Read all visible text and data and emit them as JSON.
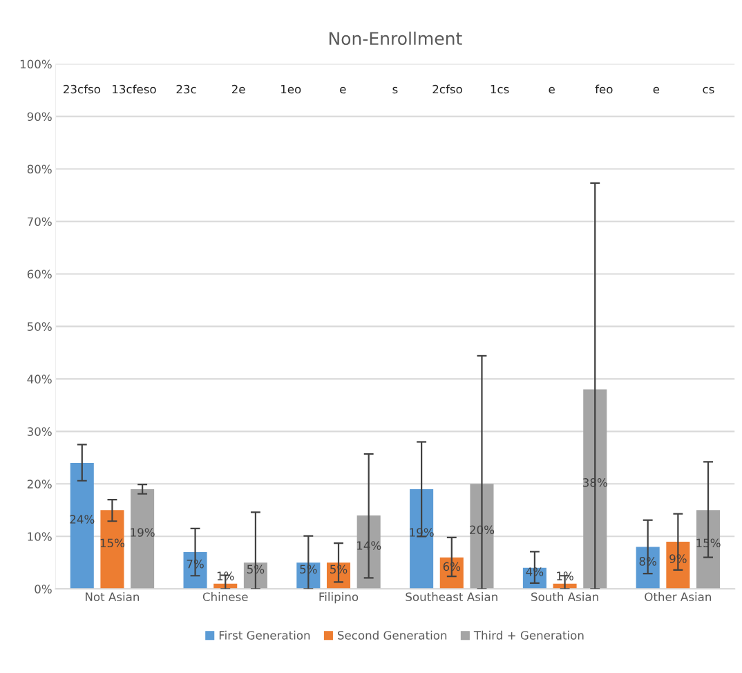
{
  "chart_data": {
    "type": "bar",
    "title": "Non-Enrollment",
    "categories": [
      "Not Asian",
      "Chinese",
      "Filipino",
      "Southeast Asian",
      "South Asian",
      "Other Asian"
    ],
    "series": [
      {
        "name": "First Generation",
        "color": "#5b9bd5",
        "values": [
          24,
          7,
          5,
          19,
          4,
          8
        ],
        "errors": [
          [
            20.6,
            27.5
          ],
          [
            2.5,
            11.5
          ],
          [
            0,
            10.1
          ],
          [
            10,
            28
          ],
          [
            1.1,
            7.1
          ],
          [
            2.9,
            13.1
          ]
        ],
        "value_labels": [
          "24%",
          "7%",
          "5%",
          "19%",
          "4%",
          "8%"
        ]
      },
      {
        "name": "Second Generation",
        "color": "#ed7d31",
        "values": [
          15,
          1,
          5,
          6,
          1,
          9
        ],
        "errors": [
          [
            12.9,
            17
          ],
          [
            0,
            2.6
          ],
          [
            1.3,
            8.7
          ],
          [
            2.4,
            9.8
          ],
          [
            0,
            2.5
          ],
          [
            3.6,
            14.3
          ]
        ],
        "value_labels": [
          "15%",
          "1%",
          "5%",
          "6%",
          "1%",
          "9%"
        ]
      },
      {
        "name": "Third + Generation",
        "color": "#a5a5a5",
        "values": [
          19,
          5,
          14,
          20,
          38,
          15
        ],
        "errors": [
          [
            18.1,
            19.9
          ],
          [
            0,
            14.6
          ],
          [
            2.1,
            25.7
          ],
          [
            0,
            44.4
          ],
          [
            0,
            77.3
          ],
          [
            6,
            24.2
          ]
        ],
        "value_labels": [
          "19%",
          "5%",
          "14%",
          "20%",
          "38%",
          "15%"
        ]
      }
    ],
    "ylim": [
      0,
      100
    ],
    "yticks": [
      {
        "value": 0,
        "label": "0%"
      },
      {
        "value": 10,
        "label": "10%"
      },
      {
        "value": 20,
        "label": "20%"
      },
      {
        "value": 30,
        "label": "30%"
      },
      {
        "value": 40,
        "label": "40%"
      },
      {
        "value": 50,
        "label": "50%"
      },
      {
        "value": 60,
        "label": "60%"
      },
      {
        "value": 70,
        "label": "70%"
      },
      {
        "value": 80,
        "label": "80%"
      },
      {
        "value": 90,
        "label": "90%"
      },
      {
        "value": 100,
        "label": "100%"
      }
    ],
    "grid": "y",
    "legend": "bottom",
    "annotations": [
      "23cfso",
      "13cfeso",
      "23c",
      "2e",
      "1eo",
      "e",
      "s",
      "2cfso",
      "1cs",
      "e",
      "feo",
      "e",
      "cs"
    ]
  }
}
